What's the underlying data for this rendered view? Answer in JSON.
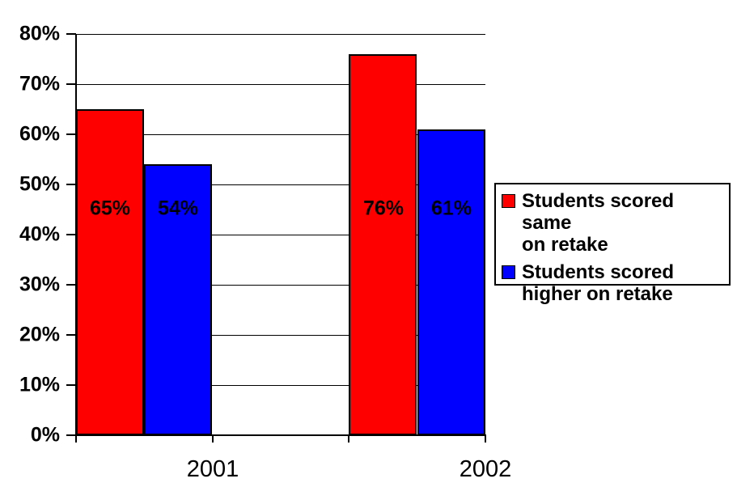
{
  "chart_data": {
    "type": "bar",
    "title": "",
    "xlabel": "",
    "ylabel": "",
    "categories": [
      "2001",
      "2002"
    ],
    "series": [
      {
        "name": "Students scored same on retake",
        "color": "#ff0000",
        "values": [
          65,
          76
        ]
      },
      {
        "name": "Students scored higher on retake",
        "color": "#0000ff",
        "values": [
          54,
          61
        ]
      }
    ],
    "bar_value_labels": [
      [
        "65%",
        "54%"
      ],
      [
        "76%",
        "61%"
      ]
    ],
    "value_suffix": "%",
    "ylim": [
      0,
      80
    ],
    "ytick_step": 10,
    "ytick_labels": [
      "0%",
      "10%",
      "20%",
      "30%",
      "40%",
      "50%",
      "60%",
      "70%",
      "80%"
    ],
    "grid": true,
    "legend_position": "right"
  },
  "legend": {
    "entries": [
      {
        "label": "Students scored same\non retake",
        "color": "#ff0000"
      },
      {
        "label": "Students scored\nhigher on retake",
        "color": "#0000ff"
      }
    ]
  },
  "colors": {
    "bar_red": "#ff0000",
    "bar_blue": "#0000ff",
    "axis": "#000000",
    "gridline": "#000000",
    "background": "#ffffff"
  }
}
